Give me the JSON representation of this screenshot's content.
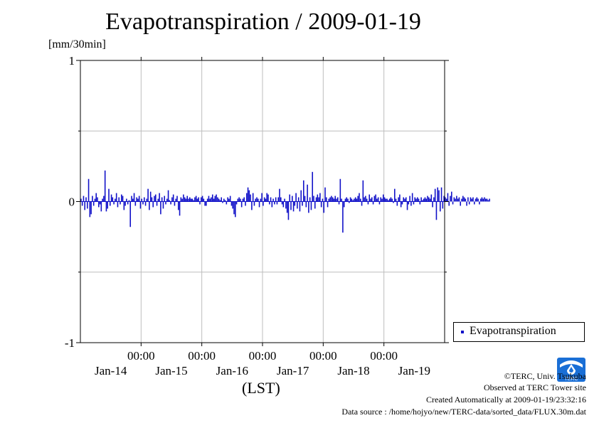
{
  "header": {
    "title": "Evapotranspiration / 2009-01-19",
    "unit": "[mm/30min]"
  },
  "chart_data": {
    "type": "bar",
    "title": "Evapotranspiration / 2009-01-19",
    "ylabel": "[mm/30min]",
    "xlabel": "(LST)",
    "ylim": [
      -1,
      1
    ],
    "y_ticks": [
      {
        "value": 1,
        "label": "1"
      },
      {
        "value": 0,
        "label": "0"
      },
      {
        "value": -1,
        "label": "-1"
      }
    ],
    "x_hour_labels": [
      "00:00",
      "00:00",
      "00:00",
      "00:00",
      "00:00"
    ],
    "x_day_labels": [
      "Jan-14",
      "Jan-15",
      "Jan-16",
      "Jan-17",
      "Jan-18",
      "Jan-19"
    ],
    "x_range_hours": [
      0,
      144
    ],
    "grid": true,
    "legend_position": "bottom-right, outside plot",
    "series": [
      {
        "name": "Evapotranspiration",
        "color": "#1010c8",
        "interval_hours": 0.5,
        "values": [
          0.02,
          -0.03,
          0.04,
          -0.06,
          0.03,
          -0.05,
          0.16,
          -0.11,
          -0.09,
          0.04,
          -0.03,
          0.02,
          0.06,
          0.03,
          -0.04,
          -0.02,
          -0.07,
          0.02,
          0.04,
          0.22,
          -0.07,
          -0.05,
          0.09,
          -0.03,
          0.05,
          0.03,
          -0.02,
          0.02,
          0.06,
          -0.04,
          0.03,
          -0.02,
          0.05,
          0.04,
          -0.06,
          -0.03,
          0.02,
          -0.02,
          0.01,
          -0.18,
          0.04,
          0.02,
          0.06,
          -0.03,
          0.03,
          0.02,
          0.04,
          -0.05,
          0.02,
          -0.02,
          0.03,
          -0.03,
          0.02,
          0.09,
          -0.06,
          0.07,
          0.03,
          -0.04,
          0.04,
          0.05,
          -0.03,
          0.02,
          0.06,
          -0.09,
          0.03,
          -0.05,
          0.04,
          -0.02,
          0.02,
          0.08,
          0.01,
          -0.02,
          0.03,
          0.05,
          -0.03,
          0.02,
          0.04,
          -0.06,
          -0.1,
          0.03,
          0.02,
          0.05,
          0.03,
          0.02,
          0.04,
          0.02,
          0.03,
          0.02,
          0.02,
          0.01,
          0.03,
          0.04,
          0.02,
          0.03,
          -0.02,
          0.03,
          0.04,
          0.02,
          -0.03,
          -0.03,
          0.02,
          0.04,
          0.02,
          0.03,
          0.05,
          0.02,
          0.04,
          0.05,
          0.03,
          0.02,
          0.01,
          0.03,
          -0.01,
          0.02,
          0.01,
          -0.02,
          0.03,
          0.02,
          0.04,
          -0.03,
          -0.05,
          -0.09,
          -0.11,
          -0.02,
          0.02,
          0.03,
          0.02,
          -0.04,
          0.02,
          0.03,
          -0.03,
          0.06,
          0.1,
          0.08,
          0.05,
          -0.06,
          0.06,
          -0.03,
          0.02,
          0.03,
          0.02,
          -0.04,
          0.02,
          0.06,
          -0.03,
          0.03,
          0.02,
          0.06,
          0.05,
          -0.02,
          0.03,
          -0.04,
          0.02,
          -0.02,
          0.03,
          -0.02,
          0.03,
          0.09,
          0.03,
          -0.02,
          -0.04,
          0.02,
          -0.05,
          -0.08,
          -0.13,
          0.05,
          -0.06,
          0.04,
          -0.07,
          -0.03,
          0.06,
          -0.05,
          0.03,
          -0.07,
          0.08,
          -0.03,
          0.15,
          0.04,
          -0.04,
          0.12,
          -0.08,
          0.03,
          -0.06,
          0.21,
          0.04,
          -0.05,
          0.03,
          0.05,
          0.03,
          0.06,
          -0.04,
          0.02,
          -0.08,
          0.1,
          0.03,
          -0.04,
          0.02,
          0.03,
          0.04,
          0.03,
          0.02,
          0.04,
          0.02,
          0.03,
          -0.02,
          0.16,
          0.02,
          -0.22,
          -0.04,
          0.02,
          0.03,
          0.02,
          -0.01,
          0.03,
          0.02,
          0.01,
          0.02,
          0.03,
          0.02,
          0.04,
          0.06,
          0.02,
          -0.03,
          0.15,
          0.03,
          0.04,
          0.02,
          -0.02,
          0.05,
          0.02,
          0.03,
          -0.02,
          0.04,
          0.05,
          0.02,
          0.03,
          -0.02,
          0.03,
          0.02,
          0.05,
          0.03,
          0.02,
          0.02,
          0.01,
          0.02,
          0.03,
          0.02,
          -0.01,
          0.09,
          0.02,
          -0.03,
          0.03,
          0.05,
          -0.04,
          -0.02,
          0.03,
          0.02,
          0.03,
          -0.06,
          -0.02,
          0.04,
          -0.03,
          0.06,
          -0.02,
          0.03,
          0.02,
          0.03,
          0.02,
          -0.02,
          0.03,
          0.01,
          0.02,
          0.03,
          0.02,
          0.04,
          0.03,
          0.02,
          0.05,
          -0.04,
          0.03,
          0.09,
          -0.13,
          0.1,
          0.08,
          -0.07,
          0.1,
          -0.05,
          0.04,
          0.03,
          0.02,
          0.06,
          -0.03,
          0.04,
          0.07,
          -0.02,
          0.03,
          0.02,
          0.04,
          0.02,
          0.03,
          -0.03,
          0.02,
          0.04,
          0.03,
          0.02,
          -0.03,
          0.03,
          -0.02,
          0.03,
          0.02,
          0.03,
          -0.02,
          0.02,
          0.03,
          0.02,
          -0.02,
          0.02,
          0.03,
          0.02,
          0.03,
          0.02,
          0.02,
          0.01,
          0.02
        ]
      }
    ]
  },
  "legend": {
    "label": "Evapotranspiration"
  },
  "credits": {
    "copyright": "©TERC, Univ. Tsukuba",
    "observed": "Observed at TERC Tower site",
    "created": "Created Automatically at 2009-01-19/23:32:16",
    "source": "Data source : /home/hojyo/new/TERC-data/sorted_data/FLUX.30m.dat"
  },
  "logo": {
    "text": "TERC",
    "color": "#1a6fd6"
  }
}
